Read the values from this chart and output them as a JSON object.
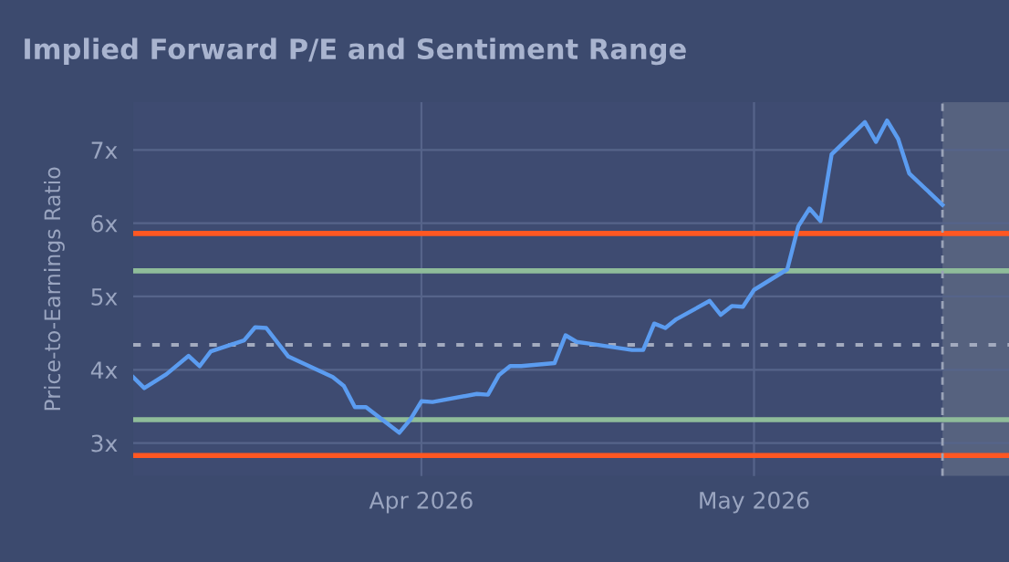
{
  "chart_data": {
    "type": "line",
    "title": "Implied Forward P/E and Sentiment Range",
    "ylabel": "Price-to-Earnings Ratio",
    "x": [
      "2026-03-06",
      "2026-03-07",
      "2026-03-09",
      "2026-03-11",
      "2026-03-12",
      "2026-03-13",
      "2026-03-16",
      "2026-03-17",
      "2026-03-18",
      "2026-03-20",
      "2026-03-24",
      "2026-03-25",
      "2026-03-26",
      "2026-03-27",
      "2026-03-30",
      "2026-03-31",
      "2026-04-01",
      "2026-04-02",
      "2026-04-06",
      "2026-04-07",
      "2026-04-08",
      "2026-04-09",
      "2026-04-10",
      "2026-04-13",
      "2026-04-14",
      "2026-04-15",
      "2026-04-16",
      "2026-04-20",
      "2026-04-21",
      "2026-04-22",
      "2026-04-23",
      "2026-04-24",
      "2026-04-27",
      "2026-04-28",
      "2026-04-29",
      "2026-04-30",
      "2026-05-01",
      "2026-05-04",
      "2026-05-05",
      "2026-05-06",
      "2026-05-07",
      "2026-05-08",
      "2026-05-11",
      "2026-05-12",
      "2026-05-13",
      "2026-05-14",
      "2026-05-15",
      "2026-05-18"
    ],
    "series": [
      {
        "color": "#5b9cf0",
        "values": [
          3.9,
          3.75,
          3.94,
          4.19,
          4.05,
          4.25,
          4.4,
          4.58,
          4.57,
          4.18,
          3.9,
          3.78,
          3.49,
          3.49,
          3.14,
          3.32,
          3.57,
          3.56,
          3.67,
          3.66,
          3.93,
          4.05,
          4.05,
          4.09,
          4.47,
          4.38,
          4.36,
          4.27,
          4.27,
          4.63,
          4.57,
          4.69,
          4.94,
          4.75,
          4.87,
          4.86,
          5.09,
          5.37,
          5.96,
          6.2,
          6.03,
          6.94,
          7.38,
          7.11,
          7.4,
          7.15,
          6.68,
          6.25
        ]
      }
    ],
    "xlim": [
      "2026-03-06",
      "2026-05-24"
    ],
    "xticks": [
      {
        "value": "2026-04-01",
        "label": "Apr 2026"
      },
      {
        "value": "2026-05-01",
        "label": "May 2026"
      }
    ],
    "ylim": [
      2.55,
      7.65
    ],
    "yticks": [
      {
        "value": 3,
        "label": "3x"
      },
      {
        "value": 4,
        "label": "4x"
      },
      {
        "value": 5,
        "label": "5x"
      },
      {
        "value": 6,
        "label": "6x"
      },
      {
        "value": 7,
        "label": "7x"
      }
    ],
    "ref_lines": [
      {
        "axis": "y",
        "value": 5.86,
        "color": "#ff5722",
        "line_style": "solid"
      },
      {
        "axis": "y",
        "value": 5.35,
        "color": "#8fbc9a",
        "line_style": "solid"
      },
      {
        "axis": "y",
        "value": 4.34,
        "color": "#a3abbf",
        "line_style": "dotted"
      },
      {
        "axis": "y",
        "value": 3.32,
        "color": "#8fbc9a",
        "line_style": "solid"
      },
      {
        "axis": "y",
        "value": 2.83,
        "color": "#ff5722",
        "line_style": "solid"
      },
      {
        "axis": "x",
        "value": "2026-05-18",
        "color": "#9aa3b8",
        "line_style": "dashed"
      }
    ],
    "bands": [
      {
        "axis": "x",
        "from": "2026-05-18",
        "to": "2026-05-24",
        "color": "#56627f"
      }
    ],
    "grid": true,
    "legend": false,
    "marker": "none",
    "line_style": "solid"
  }
}
